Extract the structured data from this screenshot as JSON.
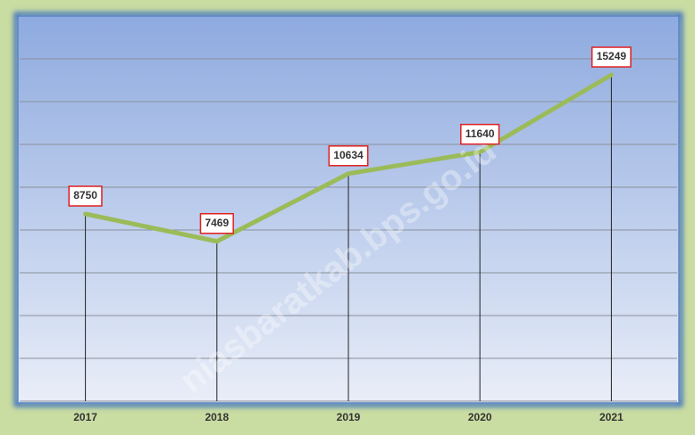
{
  "chart_data": {
    "type": "line",
    "categories": [
      "2017",
      "2018",
      "2019",
      "2020",
      "2021"
    ],
    "values": [
      8750,
      7469,
      10634,
      11640,
      15249
    ],
    "color": "#9bbb59",
    "ylim": [
      0,
      18000
    ],
    "yticks": [
      0,
      2000,
      4000,
      6000,
      8000,
      10000,
      12000,
      14000,
      16000
    ],
    "grid": true,
    "watermark": "niasbaratkab.bps.go.id"
  }
}
